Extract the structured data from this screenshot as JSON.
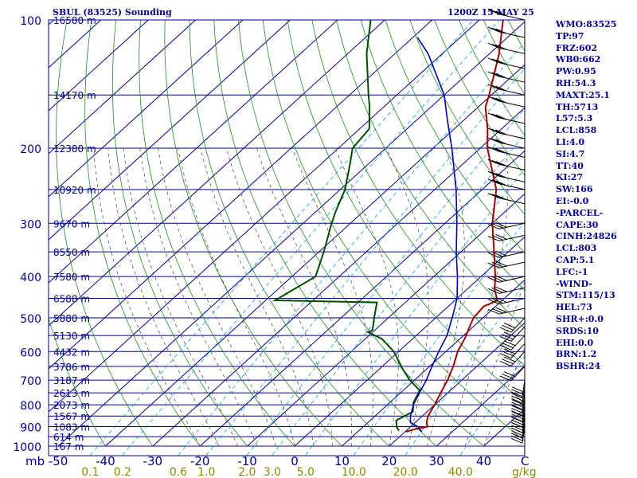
{
  "header": {
    "title_left": "SBUL (83525) Sounding",
    "title_right": "1200Z 15 MAY 25"
  },
  "indices": [
    "WMO:83525",
    "TP:97",
    "FRZ:602",
    "WB0:662",
    "PW:0.95",
    "RH:54.3",
    "MAXT:25.1",
    "TH:5713",
    "L57:5.3",
    "LCL:858",
    "LI:4.0",
    "SI:4.7",
    "TT:40",
    "KI:27",
    "SW:166",
    "EI:-0.0",
    "-PARCEL-",
    "CAPE:30",
    "CINH:24826",
    "LCL:803",
    "CAP:5.1",
    "LFC:-1",
    "-WIND-",
    "STM:115/13",
    "HEL:73",
    "SHR+:0.0",
    "SRDS:10",
    "EHI:0.0",
    "BRN:1.2",
    "BSHR:24"
  ],
  "colors": {
    "isobar": "#00008b",
    "isotherm": "#00008b",
    "dry_adiabat": "#228b22",
    "moist_adiabat": "#555555",
    "mixing_ratio": "#00a0d8",
    "temperature": "#a00000",
    "dewpoint": "#004d00",
    "parcel": "#0000aa",
    "text": "#00008b",
    "mixing_label": "#8b8b00"
  },
  "chart_data": {
    "type": "line",
    "title": "SBUL (83525) Sounding",
    "subtitle": "1200Z 15 MAY 25",
    "xlabel": "C",
    "y_scale": "log",
    "xlim": [
      -50,
      50
    ],
    "ylim": [
      1000,
      100
    ],
    "grid": true,
    "pressure_ticks": [
      100,
      200,
      300,
      400,
      500,
      600,
      700,
      800,
      900,
      1000
    ],
    "temperature_ticks": [
      -50,
      -40,
      -30,
      -20,
      -10,
      0,
      10,
      20,
      30,
      40
    ],
    "x_unit_label": "C",
    "y_unit_label": "mb",
    "mixing_ratio_unit": "g/kg",
    "mixing_ratio_labels": [
      "0.1",
      "0.2",
      "0.6",
      "1.0",
      "2.0",
      "3.0",
      "5.0",
      "10.0",
      "20.0",
      "40.0"
    ],
    "mixing_ratio_values": [
      0.1,
      0.2,
      0.6,
      1.0,
      2.0,
      3.0,
      5.0,
      10.0,
      20.0,
      40.0
    ],
    "height_labels": [
      {
        "p": 100,
        "text": "16580 m"
      },
      {
        "p": 150,
        "text": "14170 m"
      },
      {
        "p": 200,
        "text": "12380 m"
      },
      {
        "p": 250,
        "text": "10920 m"
      },
      {
        "p": 300,
        "text": "9670 m"
      },
      {
        "p": 350,
        "text": "8550 m"
      },
      {
        "p": 400,
        "text": "7580 m"
      },
      {
        "p": 450,
        "text": "6588 m"
      },
      {
        "p": 500,
        "text": "5880 m"
      },
      {
        "p": 550,
        "text": "5130 m"
      },
      {
        "p": 600,
        "text": "4432 m"
      },
      {
        "p": 650,
        "text": "3786 m"
      },
      {
        "p": 700,
        "text": "3187 m"
      },
      {
        "p": 750,
        "text": "2613 m"
      },
      {
        "p": 800,
        "text": "2073 m"
      },
      {
        "p": 850,
        "text": "1567 m"
      },
      {
        "p": 900,
        "text": "1083 m"
      },
      {
        "p": 950,
        "text": "614 m"
      },
      {
        "p": 1000,
        "text": "167 m"
      }
    ],
    "series": [
      {
        "name": "temperature",
        "points": [
          [
            925,
            20.2
          ],
          [
            912,
            21.5
          ],
          [
            900,
            23.6
          ],
          [
            880,
            22.4
          ],
          [
            850,
            21.2
          ],
          [
            800,
            20.0
          ],
          [
            750,
            18.5
          ],
          [
            700,
            17.0
          ],
          [
            650,
            15.0
          ],
          [
            600,
            12.5
          ],
          [
            560,
            11.0
          ],
          [
            520,
            9.0
          ],
          [
            500,
            8.0
          ],
          [
            470,
            7.5
          ],
          [
            455,
            9.0
          ],
          [
            430,
            6.0
          ],
          [
            400,
            3.0
          ],
          [
            350,
            -3.0
          ],
          [
            300,
            -10.0
          ],
          [
            250,
            -17.0
          ],
          [
            200,
            -28.5
          ],
          [
            180,
            -33.0
          ],
          [
            160,
            -38.5
          ],
          [
            150,
            -40.5
          ],
          [
            120,
            -48.0
          ],
          [
            100,
            -55.0
          ]
        ]
      },
      {
        "name": "dewpoint",
        "points": [
          [
            920,
            18.5
          ],
          [
            900,
            17.0
          ],
          [
            870,
            15.5
          ],
          [
            830,
            17.0
          ],
          [
            790,
            15.0
          ],
          [
            740,
            13.5
          ],
          [
            700,
            9.0
          ],
          [
            660,
            5.0
          ],
          [
            600,
            -1.0
          ],
          [
            560,
            -6.5
          ],
          [
            540,
            -11.0
          ],
          [
            535,
            -10.5
          ],
          [
            520,
            -11.5
          ],
          [
            500,
            -13.0
          ],
          [
            460,
            -16.0
          ],
          [
            455,
            -38.0
          ],
          [
            400,
            -35.0
          ],
          [
            350,
            -39.0
          ],
          [
            300,
            -44.0
          ],
          [
            280,
            -46.0
          ],
          [
            250,
            -49.0
          ],
          [
            220,
            -53.5
          ],
          [
            200,
            -57.0
          ],
          [
            180,
            -58.0
          ],
          [
            160,
            -63.0
          ],
          [
            150,
            -66.0
          ],
          [
            120,
            -76.0
          ],
          [
            100,
            -83.0
          ]
        ]
      },
      {
        "name": "parcel",
        "points": [
          [
            925,
            23.5
          ],
          [
            900,
            21.5
          ],
          [
            880,
            19.0
          ],
          [
            850,
            17.5
          ],
          [
            800,
            15.5
          ],
          [
            750,
            14.0
          ],
          [
            700,
            12.5
          ],
          [
            650,
            10.5
          ],
          [
            600,
            8.5
          ],
          [
            550,
            6.5
          ],
          [
            500,
            3.5
          ],
          [
            450,
            0.0
          ],
          [
            400,
            -5.0
          ],
          [
            350,
            -11.0
          ],
          [
            300,
            -17.5
          ],
          [
            250,
            -25.5
          ],
          [
            200,
            -36.0
          ],
          [
            170,
            -44.0
          ],
          [
            150,
            -50.0
          ],
          [
            120,
            -63.0
          ],
          [
            110,
            -69.0
          ]
        ]
      }
    ]
  }
}
